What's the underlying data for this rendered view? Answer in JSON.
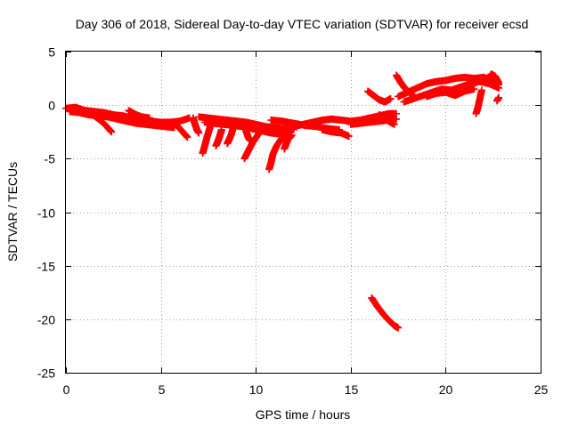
{
  "chart_data": {
    "type": "scatter",
    "title": "Day 306 of 2018, Sidereal Day-to-day VTEC variation (SDTVAR) for receiver ecsd",
    "xlabel": "GPS time / hours",
    "ylabel": "SDTVAR / TECUs",
    "xlim": [
      0,
      25
    ],
    "ylim": [
      -25,
      5
    ],
    "xticks": [
      0,
      5,
      10,
      15,
      20,
      25
    ],
    "yticks": [
      5,
      0,
      -5,
      -10,
      -15,
      -20,
      -25
    ],
    "grid": true,
    "marker": "+",
    "series": [
      {
        "name": "SDTVAR",
        "color": "#ff0000",
        "tracks": [
          [
            [
              0.0,
              -0.3
            ],
            [
              0.5,
              -0.2
            ],
            [
              1.0,
              -0.5
            ],
            [
              1.5,
              -0.6
            ],
            [
              2.0,
              -0.7
            ],
            [
              2.5,
              -0.9
            ],
            [
              3.0,
              -1.0
            ],
            [
              3.5,
              -1.2
            ],
            [
              4.0,
              -1.4
            ],
            [
              4.5,
              -1.5
            ],
            [
              5.0,
              -1.6
            ],
            [
              5.5,
              -1.6
            ],
            [
              6.0,
              -1.5
            ],
            [
              6.5,
              -1.2
            ]
          ],
          [
            [
              0.2,
              -0.6
            ],
            [
              0.7,
              -0.7
            ],
            [
              1.2,
              -0.9
            ],
            [
              1.7,
              -1.0
            ],
            [
              2.2,
              -1.1
            ],
            [
              2.7,
              -1.3
            ],
            [
              3.2,
              -1.5
            ],
            [
              3.7,
              -1.7
            ],
            [
              4.2,
              -1.8
            ],
            [
              4.7,
              -1.9
            ],
            [
              5.2,
              -2.0
            ],
            [
              5.7,
              -2.1
            ]
          ],
          [
            [
              1.5,
              -1.0
            ],
            [
              1.8,
              -1.4
            ],
            [
              2.1,
              -1.9
            ],
            [
              2.4,
              -2.5
            ]
          ],
          [
            [
              3.3,
              -0.5
            ],
            [
              3.7,
              -0.9
            ],
            [
              4.0,
              -1.1
            ],
            [
              4.4,
              -1.2
            ]
          ],
          [
            [
              5.6,
              -1.6
            ],
            [
              5.9,
              -2.0
            ],
            [
              6.2,
              -2.6
            ],
            [
              6.4,
              -3.0
            ]
          ],
          [
            [
              6.7,
              -1.2
            ],
            [
              6.8,
              -1.8
            ],
            [
              6.9,
              -2.3
            ],
            [
              7.0,
              -2.6
            ]
          ],
          [
            [
              7.0,
              -1.1
            ],
            [
              7.5,
              -1.2
            ],
            [
              8.0,
              -1.3
            ],
            [
              8.5,
              -1.4
            ],
            [
              9.0,
              -1.5
            ],
            [
              9.5,
              -1.6
            ],
            [
              10.0,
              -1.8
            ],
            [
              10.5,
              -2.0
            ],
            [
              11.0,
              -2.1
            ],
            [
              11.5,
              -2.2
            ],
            [
              12.0,
              -2.3
            ]
          ],
          [
            [
              7.3,
              -1.6
            ],
            [
              7.8,
              -1.7
            ],
            [
              8.3,
              -1.8
            ],
            [
              8.8,
              -1.9
            ],
            [
              9.3,
              -2.0
            ],
            [
              9.8,
              -2.2
            ],
            [
              10.3,
              -2.4
            ],
            [
              10.8,
              -2.6
            ],
            [
              11.3,
              -2.7
            ],
            [
              11.8,
              -2.8
            ]
          ],
          [
            [
              7.6,
              -2.0
            ],
            [
              7.5,
              -2.6
            ],
            [
              7.4,
              -3.2
            ],
            [
              7.3,
              -3.9
            ],
            [
              7.2,
              -4.5
            ]
          ],
          [
            [
              8.2,
              -2.3
            ],
            [
              8.1,
              -2.9
            ],
            [
              8.0,
              -3.4
            ],
            [
              7.9,
              -3.8
            ]
          ],
          [
            [
              8.8,
              -2.2
            ],
            [
              8.7,
              -2.8
            ],
            [
              8.6,
              -3.2
            ],
            [
              8.5,
              -3.6
            ]
          ],
          [
            [
              9.4,
              -1.8
            ],
            [
              9.5,
              -2.5
            ],
            [
              9.6,
              -3.0
            ],
            [
              9.7,
              -3.3
            ]
          ],
          [
            [
              10.4,
              -2.0
            ],
            [
              10.1,
              -2.8
            ],
            [
              9.8,
              -3.6
            ],
            [
              9.6,
              -4.3
            ],
            [
              9.4,
              -5.0
            ]
          ],
          [
            [
              11.4,
              -3.0
            ],
            [
              11.1,
              -3.8
            ],
            [
              10.9,
              -4.6
            ],
            [
              10.8,
              -5.4
            ],
            [
              10.7,
              -6.0
            ]
          ],
          [
            [
              11.9,
              -2.8
            ],
            [
              11.7,
              -3.2
            ],
            [
              11.6,
              -3.6
            ],
            [
              11.5,
              -4.1
            ]
          ],
          [
            [
              10.8,
              -1.4
            ],
            [
              11.4,
              -1.5
            ],
            [
              12.0,
              -1.7
            ],
            [
              12.6,
              -1.9
            ],
            [
              13.2,
              -2.0
            ],
            [
              13.8,
              -2.2
            ],
            [
              14.4,
              -2.3
            ]
          ],
          [
            [
              12.0,
              -2.0
            ],
            [
              12.5,
              -1.8
            ],
            [
              13.0,
              -1.6
            ],
            [
              13.5,
              -1.4
            ],
            [
              14.0,
              -1.3
            ],
            [
              14.5,
              -1.4
            ],
            [
              15.0,
              -1.5
            ],
            [
              15.5,
              -1.4
            ],
            [
              16.0,
              -1.2
            ],
            [
              16.5,
              -1.0
            ],
            [
              17.0,
              -0.8
            ],
            [
              17.4,
              -0.8
            ]
          ],
          [
            [
              13.5,
              -2.3
            ],
            [
              14.0,
              -2.5
            ],
            [
              14.5,
              -2.6
            ],
            [
              14.9,
              -2.9
            ]
          ],
          [
            [
              15.0,
              -1.8
            ],
            [
              15.5,
              -1.7
            ],
            [
              16.0,
              -1.6
            ],
            [
              16.5,
              -1.5
            ],
            [
              17.0,
              -1.4
            ],
            [
              17.4,
              -1.3
            ]
          ],
          [
            [
              16.5,
              -0.9
            ],
            [
              16.8,
              -1.2
            ],
            [
              17.0,
              -1.5
            ],
            [
              17.3,
              -1.8
            ]
          ],
          [
            [
              16.1,
              -18.0
            ],
            [
              16.4,
              -18.8
            ],
            [
              16.7,
              -19.5
            ],
            [
              17.0,
              -20.1
            ],
            [
              17.3,
              -20.6
            ],
            [
              17.5,
              -20.8
            ]
          ],
          [
            [
              15.9,
              1.3
            ],
            [
              16.2,
              0.9
            ],
            [
              16.5,
              0.5
            ],
            [
              16.8,
              0.3
            ],
            [
              17.1,
              0.6
            ]
          ],
          [
            [
              17.5,
              0.8
            ],
            [
              18.0,
              1.2
            ],
            [
              18.5,
              1.6
            ],
            [
              19.0,
              2.0
            ],
            [
              19.5,
              2.2
            ],
            [
              20.0,
              2.3
            ],
            [
              20.5,
              2.5
            ],
            [
              21.0,
              2.6
            ],
            [
              21.5,
              2.5
            ],
            [
              22.0,
              2.6
            ],
            [
              22.5,
              2.3
            ],
            [
              22.8,
              1.9
            ]
          ],
          [
            [
              17.8,
              0.3
            ],
            [
              18.3,
              0.6
            ],
            [
              18.8,
              0.9
            ],
            [
              19.3,
              1.2
            ],
            [
              19.8,
              1.5
            ],
            [
              20.3,
              1.4
            ],
            [
              20.8,
              1.7
            ],
            [
              21.3,
              2.0
            ],
            [
              21.8,
              2.2
            ],
            [
              22.3,
              2.0
            ],
            [
              22.8,
              1.6
            ]
          ],
          [
            [
              17.4,
              2.8
            ],
            [
              17.6,
              2.2
            ],
            [
              17.8,
              1.7
            ],
            [
              18.0,
              1.3
            ],
            [
              18.3,
              0.9
            ]
          ],
          [
            [
              19.0,
              0.8
            ],
            [
              19.5,
              1.1
            ],
            [
              20.0,
              1.2
            ],
            [
              20.5,
              0.9
            ],
            [
              21.0,
              1.3
            ],
            [
              21.5,
              1.5
            ]
          ],
          [
            [
              21.9,
              1.4
            ],
            [
              21.8,
              0.6
            ],
            [
              21.7,
              -0.2
            ],
            [
              21.6,
              -0.8
            ]
          ],
          [
            [
              22.3,
              2.5
            ],
            [
              22.4,
              2.9
            ],
            [
              22.6,
              2.7
            ],
            [
              22.8,
              2.1
            ]
          ],
          [
            [
              22.7,
              0.4
            ],
            [
              22.8,
              0.7
            ]
          ]
        ]
      }
    ]
  }
}
